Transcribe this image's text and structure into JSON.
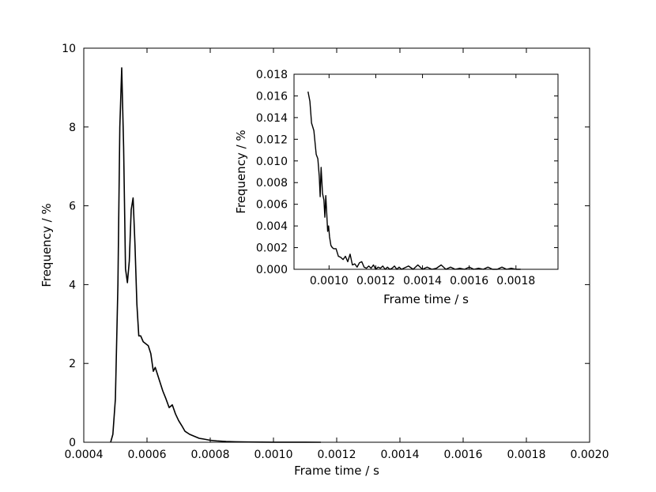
{
  "charts": [
    {
      "id": "main",
      "type": "line",
      "xlabel": "Frame time / s",
      "ylabel": "Frequency / %",
      "xlim": [
        0.0004,
        0.002
      ],
      "ylim": [
        0,
        10
      ],
      "grid": false,
      "xticks": [
        "0.0004",
        "0.0006",
        "0.0008",
        "0.0010",
        "0.0012",
        "0.0014",
        "0.0016",
        "0.0018",
        "0.0020"
      ],
      "yticks": [
        "0",
        "2",
        "4",
        "6",
        "8",
        "10"
      ],
      "series": [
        {
          "color": "#000000",
          "x": [
            0.000485,
            0.000492,
            0.0005,
            0.000508,
            0.000514,
            0.00052,
            0.000526,
            0.000532,
            0.000538,
            0.000544,
            0.00055,
            0.000556,
            0.000562,
            0.000568,
            0.000574,
            0.00058,
            0.000588,
            0.000596,
            0.000604,
            0.000612,
            0.00062,
            0.000626,
            0.000632,
            0.00064,
            0.00065,
            0.00066,
            0.00067,
            0.00068,
            0.00069,
            0.0007,
            0.00071,
            0.00072,
            0.000735,
            0.00075,
            0.000765,
            0.00078,
            0.0008,
            0.00082,
            0.00085,
            0.00088,
            0.00092,
            0.00096,
            0.001,
            0.00105,
            0.0011,
            0.00115
          ],
          "y": [
            0.0,
            0.2,
            1.1,
            4.0,
            8.0,
            9.5,
            7.5,
            4.4,
            4.05,
            4.6,
            5.9,
            6.2,
            5.0,
            3.5,
            2.7,
            2.7,
            2.55,
            2.5,
            2.45,
            2.25,
            1.8,
            1.9,
            1.75,
            1.55,
            1.3,
            1.1,
            0.88,
            0.95,
            0.72,
            0.55,
            0.42,
            0.28,
            0.2,
            0.15,
            0.1,
            0.08,
            0.05,
            0.035,
            0.02,
            0.012,
            0.007,
            0.004,
            0.002,
            0.001,
            0.0005,
            0.0002
          ]
        }
      ]
    },
    {
      "id": "inset",
      "type": "line",
      "xlabel": "Frame time / s",
      "ylabel": "Frequency / %",
      "xlim": [
        0.00085,
        0.00198
      ],
      "ylim": [
        0,
        0.018
      ],
      "grid": false,
      "xticks": [
        "0.0010",
        "0.0012",
        "0.0014",
        "0.0016",
        "0.0018"
      ],
      "yticks": [
        "0.000",
        "0.002",
        "0.004",
        "0.006",
        "0.008",
        "0.010",
        "0.012",
        "0.014",
        "0.016",
        "0.018"
      ],
      "series": [
        {
          "color": "#000000",
          "x": [
            0.00091,
            0.000918,
            0.000925,
            0.000935,
            0.000945,
            0.000952,
            0.000958,
            0.000962,
            0.000966,
            0.000972,
            0.000978,
            0.000982,
            0.000986,
            0.00099,
            0.000994,
            0.000998,
            0.001002,
            0.001008,
            0.001014,
            0.00102,
            0.00103,
            0.00104,
            0.00105,
            0.00106,
            0.00107,
            0.00108,
            0.00109,
            0.0011,
            0.00111,
            0.00112,
            0.00113,
            0.00114,
            0.00115,
            0.00116,
            0.00117,
            0.00118,
            0.00119,
            0.0012,
            0.00121,
            0.00122,
            0.00123,
            0.00124,
            0.00125,
            0.00126,
            0.00127,
            0.00128,
            0.00129,
            0.0013,
            0.00131,
            0.00132,
            0.00134,
            0.00136,
            0.00138,
            0.0014,
            0.00142,
            0.00144,
            0.00146,
            0.00148,
            0.0015,
            0.00152,
            0.00154,
            0.00156,
            0.00158,
            0.0016,
            0.00162,
            0.00164,
            0.00166,
            0.00168,
            0.0017,
            0.00172,
            0.00174,
            0.00176,
            0.00178,
            0.0018,
            0.00182
          ],
          "y": [
            0.0164,
            0.0155,
            0.0135,
            0.0128,
            0.0106,
            0.0102,
            0.0086,
            0.0067,
            0.0094,
            0.007,
            0.0064,
            0.0048,
            0.0068,
            0.0052,
            0.0035,
            0.004,
            0.003,
            0.0022,
            0.002,
            0.0019,
            0.0019,
            0.0012,
            0.0011,
            0.0009,
            0.0012,
            0.0007,
            0.0014,
            0.0004,
            0.0005,
            0.0002,
            0.0006,
            0.0007,
            0.0002,
            0.0001,
            0.0003,
            0.0001,
            0.0004,
            0.0,
            0.0002,
            0.0001,
            0.0003,
            0.0,
            0.0002,
            0.0,
            0.0001,
            0.0003,
            0.0,
            0.0002,
            0.0,
            0.0001,
            0.0003,
            0.0,
            0.0004,
            0.0,
            0.0002,
            0.0,
            0.0001,
            0.0004,
            0.0,
            0.0002,
            0.0,
            0.0001,
            0.0,
            0.0002,
            0.0,
            0.0001,
            0.0,
            0.0002,
            0.0,
            0.0,
            0.0002,
            0.0,
            0.0001,
            0.0,
            0.0
          ]
        }
      ]
    }
  ]
}
